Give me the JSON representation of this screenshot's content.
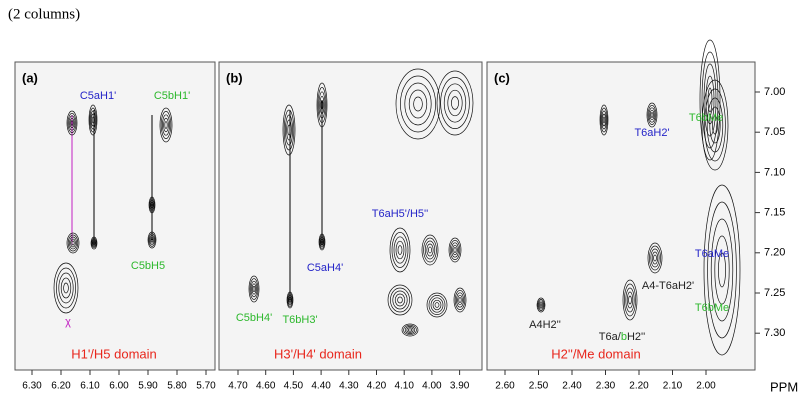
{
  "caption": "(2 columns)",
  "axis_unit": "PPM",
  "yticks": [
    "7.00",
    "7.05",
    "7.10",
    "7.15",
    "7.20",
    "7.25",
    "7.30"
  ],
  "panels": [
    {
      "label": "(a)",
      "domain": {
        "text": "H1'/H5 domain",
        "color": "#e8261c"
      },
      "xticks": [
        "6.30",
        "6.20",
        "6.10",
        "6.00",
        "5.90",
        "5.80",
        "5.70"
      ],
      "annotations": [
        {
          "text": "C5aH1'",
          "color": "#2424c8"
        },
        {
          "text": "C5bH1'",
          "color": "#2db82d"
        },
        {
          "text": "C5bH5",
          "color": "#2db82d"
        },
        {
          "text": "χ",
          "color": "#c21fc2"
        }
      ]
    },
    {
      "label": "(b)",
      "domain": {
        "text": "H3'/H4' domain",
        "color": "#e8261c"
      },
      "xticks": [
        "4.70",
        "4.60",
        "4.50",
        "4.40",
        "4.30",
        "4.20",
        "4.10",
        "4.00",
        "3.90"
      ],
      "annotations": [
        {
          "text": "C5aH4'",
          "color": "#2424c8"
        },
        {
          "text": "C5bH4'",
          "color": "#2db82d"
        },
        {
          "text": "T6bH3'",
          "color": "#2db82d"
        },
        {
          "text": "T6aH5'/H5''",
          "color": "#2424c8"
        }
      ]
    },
    {
      "label": "(c)",
      "domain": {
        "text": "H2''/Me domain",
        "color": "#e8261c"
      },
      "xticks": [
        "2.60",
        "2.50",
        "2.40",
        "2.30",
        "2.20",
        "2.10",
        "2.00"
      ],
      "annotations": [
        {
          "text": "T6aH2'",
          "color": "#2424c8"
        },
        {
          "text": "T6bMe",
          "color": "#2db82d"
        },
        {
          "text": "T6aMe",
          "color": "#2424c8"
        },
        {
          "text": "T6bMe",
          "color": "#2db82d"
        },
        {
          "text": "A4-T6aH2'",
          "color": "#222222"
        },
        {
          "text": "A4H2''",
          "color": "#222222"
        },
        {
          "parts": [
            {
              "text": "T6a",
              "color": "#222222"
            },
            {
              "text": "/",
              "color": "#222222"
            },
            {
              "text": "b",
              "color": "#2db82d"
            },
            {
              "text": "H2''",
              "color": "#222222"
            }
          ]
        }
      ]
    }
  ]
}
